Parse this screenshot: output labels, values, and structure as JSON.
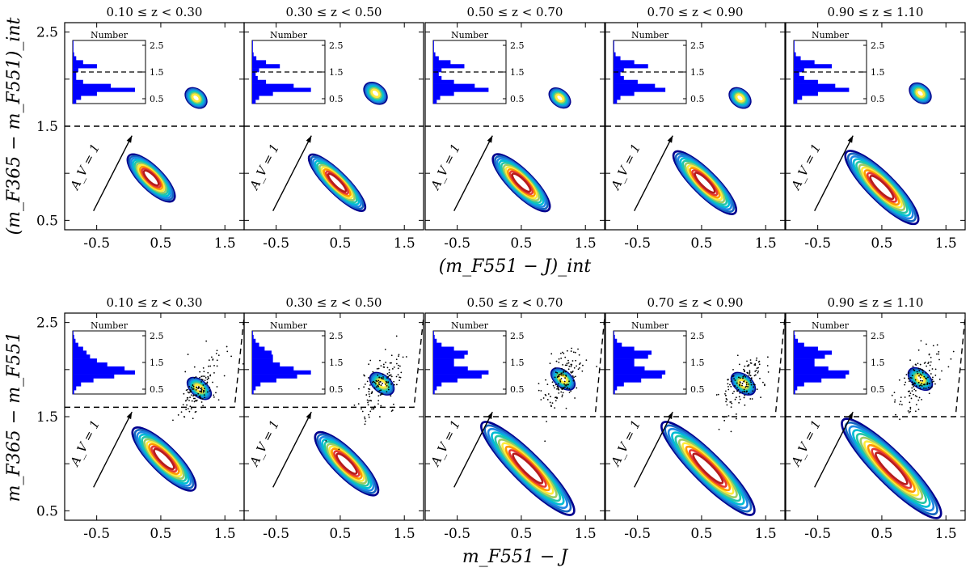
{
  "figure": {
    "colors": {
      "histogram": "#0000ff",
      "contours": [
        "#00008f",
        "#1565c0",
        "#1e88e5",
        "#00bcd4",
        "#26c6a6",
        "#9ccc65",
        "#ffeb3b",
        "#ff9800",
        "#e53935",
        "#b71c1c"
      ],
      "scatter": "#000000"
    }
  },
  "chart_data": [
    {
      "type": "scatter",
      "panel_group": "intrinsic",
      "xlabel": "(m_F551 − J)_int",
      "ylabel": "(m_F365 − m_F551)_int",
      "xlim": [
        -1.0,
        1.8
      ],
      "ylim": [
        0.4,
        2.6
      ],
      "xticks": [
        "-0.5",
        "0.5",
        "1.5"
      ],
      "yticks": [
        "0.5",
        "1.5",
        "2.5"
      ],
      "divider_y": 1.5,
      "inset": {
        "title": "Number",
        "yticks": [
          "2.5",
          "1.5",
          "0.5"
        ],
        "divider": 1.5
      },
      "arrow_label": "A_V = 1",
      "panels": [
        {
          "title": "0.10 ≤ z < 0.30",
          "blobs": [
            {
              "x": 0.35,
              "y": 0.95,
              "sx": 0.22,
              "sy": 0.22,
              "rot": -45
            },
            {
              "x": 1.05,
              "y": 1.8,
              "sx": 0.16,
              "sy": 0.12,
              "rot": -50
            }
          ],
          "hist": [
            0.05,
            0.12,
            0.35,
            0.9,
            0.55,
            0.15,
            0.05,
            0.05,
            0.08,
            0.35,
            0.15,
            0.05,
            0.02,
            0.01,
            0.01,
            0.01
          ]
        },
        {
          "title": "0.30 ≤ z < 0.50",
          "blobs": [
            {
              "x": 0.45,
              "y": 0.9,
              "sx": 0.2,
              "sy": 0.27,
              "rot": -45
            },
            {
              "x": 1.05,
              "y": 1.85,
              "sx": 0.17,
              "sy": 0.13,
              "rot": -50
            }
          ],
          "hist": [
            0.05,
            0.1,
            0.3,
            0.85,
            0.6,
            0.2,
            0.08,
            0.05,
            0.1,
            0.4,
            0.2,
            0.06,
            0.02,
            0.01,
            0.01,
            0.01
          ]
        },
        {
          "title": "0.50 ≤ z < 0.70",
          "blobs": [
            {
              "x": 0.5,
              "y": 0.9,
              "sx": 0.23,
              "sy": 0.27,
              "rot": -45
            },
            {
              "x": 1.1,
              "y": 1.8,
              "sx": 0.15,
              "sy": 0.12,
              "rot": -50
            }
          ],
          "hist": [
            0.05,
            0.1,
            0.3,
            0.8,
            0.6,
            0.3,
            0.12,
            0.08,
            0.12,
            0.45,
            0.25,
            0.08,
            0.03,
            0.01,
            0.01,
            0.01
          ]
        },
        {
          "title": "0.70 ≤ z < 0.90",
          "blobs": [
            {
              "x": 0.55,
              "y": 0.9,
              "sx": 0.23,
              "sy": 0.3,
              "rot": -45
            },
            {
              "x": 1.1,
              "y": 1.8,
              "sx": 0.16,
              "sy": 0.12,
              "rot": -50
            }
          ],
          "hist": [
            0.05,
            0.1,
            0.3,
            0.75,
            0.6,
            0.35,
            0.15,
            0.1,
            0.15,
            0.5,
            0.3,
            0.1,
            0.03,
            0.01,
            0.01,
            0.01
          ]
        },
        {
          "title": "0.90 ≤ z ≤ 1.10",
          "blobs": [
            {
              "x": 0.5,
              "y": 0.85,
              "sx": 0.26,
              "sy": 0.35,
              "rot": -45
            },
            {
              "x": 1.1,
              "y": 1.85,
              "sx": 0.16,
              "sy": 0.12,
              "rot": -50
            }
          ],
          "hist": [
            0.05,
            0.12,
            0.35,
            0.8,
            0.6,
            0.35,
            0.15,
            0.08,
            0.15,
            0.55,
            0.3,
            0.1,
            0.03,
            0.01,
            0.01,
            0.01
          ]
        }
      ]
    },
    {
      "type": "scatter",
      "panel_group": "observed",
      "xlabel": "m_F551 − J",
      "ylabel": "m_F365 − m_F551",
      "xlim": [
        -1.0,
        1.8
      ],
      "ylim": [
        0.4,
        2.6
      ],
      "xticks": [
        "-0.5",
        "0.5",
        "1.5"
      ],
      "yticks": [
        "0.5",
        "1.5",
        "2.5"
      ],
      "inset": {
        "title": "Number",
        "yticks": [
          "2.5",
          "1.5",
          "0.5"
        ]
      },
      "arrow_label": "A_V = 1",
      "panels": [
        {
          "title": "0.10 ≤ z < 0.30",
          "divider_y": 1.6,
          "blobs": [
            {
              "x": 0.55,
              "y": 1.05,
              "sx": 0.25,
              "sy": 0.3,
              "rot": -45
            },
            {
              "x": 1.1,
              "y": 1.8,
              "sx": 0.15,
              "sy": 0.14,
              "rot": -50
            }
          ],
          "hist": [
            0.02,
            0.05,
            0.12,
            0.3,
            0.6,
            0.9,
            0.75,
            0.5,
            0.35,
            0.25,
            0.2,
            0.15,
            0.08,
            0.04,
            0.02,
            0.01
          ]
        },
        {
          "title": "0.30 ≤ z < 0.50",
          "divider_y": 1.6,
          "blobs": [
            {
              "x": 0.6,
              "y": 1.0,
              "sx": 0.25,
              "sy": 0.3,
              "rot": -45
            },
            {
              "x": 1.15,
              "y": 1.85,
              "sx": 0.16,
              "sy": 0.14,
              "rot": -50
            }
          ],
          "hist": [
            0.02,
            0.05,
            0.12,
            0.35,
            0.65,
            0.85,
            0.6,
            0.4,
            0.3,
            0.3,
            0.28,
            0.18,
            0.1,
            0.05,
            0.02,
            0.01
          ]
        },
        {
          "title": "0.50 ≤ z < 0.70",
          "divider_y": 1.5,
          "blobs": [
            {
              "x": 0.6,
              "y": 0.95,
              "sx": 0.28,
              "sy": 0.45,
              "rot": -45
            },
            {
              "x": 1.15,
              "y": 1.9,
              "sx": 0.15,
              "sy": 0.14,
              "rot": -50
            }
          ],
          "hist": [
            0.02,
            0.05,
            0.12,
            0.35,
            0.7,
            0.8,
            0.5,
            0.3,
            0.3,
            0.45,
            0.5,
            0.3,
            0.12,
            0.05,
            0.02,
            0.01
          ]
        },
        {
          "title": "0.70 ≤ z < 0.90",
          "divider_y": 1.5,
          "blobs": [
            {
              "x": 0.6,
              "y": 0.95,
              "sx": 0.28,
              "sy": 0.45,
              "rot": -45
            },
            {
              "x": 1.15,
              "y": 1.85,
              "sx": 0.16,
              "sy": 0.14,
              "rot": -50
            }
          ],
          "hist": [
            0.02,
            0.05,
            0.15,
            0.4,
            0.7,
            0.75,
            0.45,
            0.3,
            0.3,
            0.5,
            0.55,
            0.3,
            0.12,
            0.05,
            0.02,
            0.01
          ]
        },
        {
          "title": "0.90 ≤ z ≤ 1.10",
          "divider_y": 1.5,
          "blobs": [
            {
              "x": 0.65,
              "y": 0.95,
              "sx": 0.3,
              "sy": 0.48,
              "rot": -45
            },
            {
              "x": 1.1,
              "y": 1.9,
              "sx": 0.16,
              "sy": 0.14,
              "rot": -50
            }
          ],
          "hist": [
            0.02,
            0.05,
            0.15,
            0.4,
            0.75,
            0.8,
            0.5,
            0.3,
            0.3,
            0.45,
            0.55,
            0.35,
            0.15,
            0.06,
            0.02,
            0.01
          ]
        }
      ]
    }
  ]
}
